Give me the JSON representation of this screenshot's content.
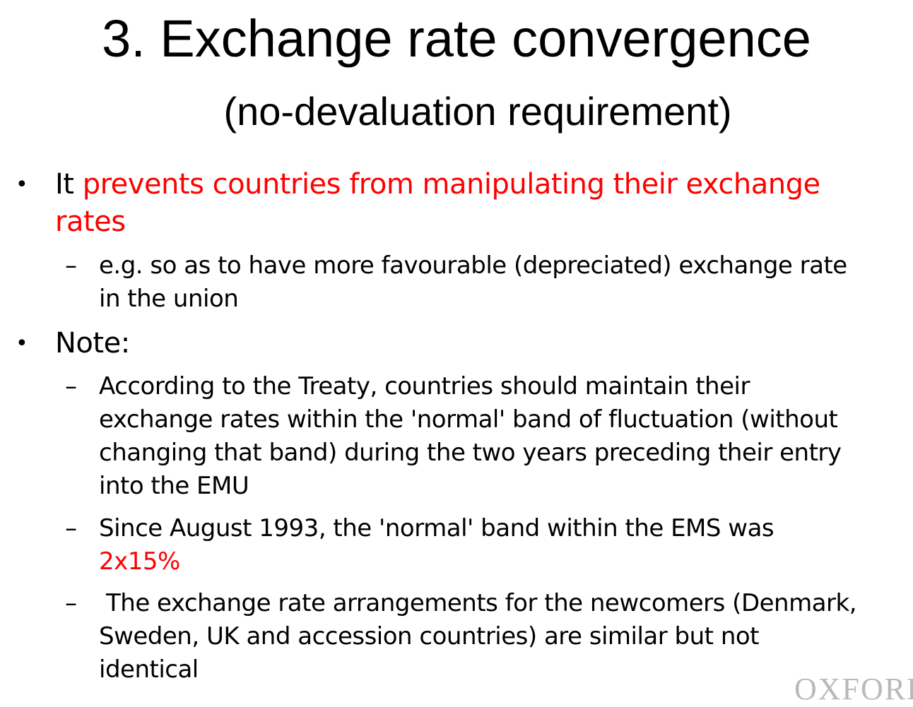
{
  "slide": {
    "title": "3. Exchange rate convergence",
    "subtitle": "(no-devaluation requirement)",
    "bullets": [
      {
        "symbol": "•",
        "prefix": "It ",
        "highlight": "prevents countries from manipulating their exchange",
        "highlight_cont": "rates",
        "sub": [
          {
            "symbol": "–",
            "lines": [
              "e.g. so as to have more favourable (depreciated) exchange rate",
              "in the union"
            ]
          }
        ]
      },
      {
        "symbol": "•",
        "text": "Note:",
        "sub": [
          {
            "symbol": "–",
            "lines": [
              "According to the Treaty, countries should maintain their",
              "exchange rates within the 'normal' band of fluctuation (without",
              "changing that band) during the two years preceding their entry",
              "into the EMU"
            ]
          },
          {
            "symbol": "–",
            "lines": [
              "Since August 1993, the 'normal' band within the EMS was"
            ],
            "highlight": "2x15%"
          },
          {
            "symbol": "–",
            "lines": [
              "The exchange rate arrangements for the newcomers (Denmark,",
              "Sweden, UK and accession countries) are similar but not",
              "identical"
            ]
          }
        ]
      }
    ]
  },
  "logo": {
    "text": "OXFORD"
  },
  "colors": {
    "highlight": "#ff0000",
    "text": "#000000",
    "logo": "#b9b9b9"
  }
}
